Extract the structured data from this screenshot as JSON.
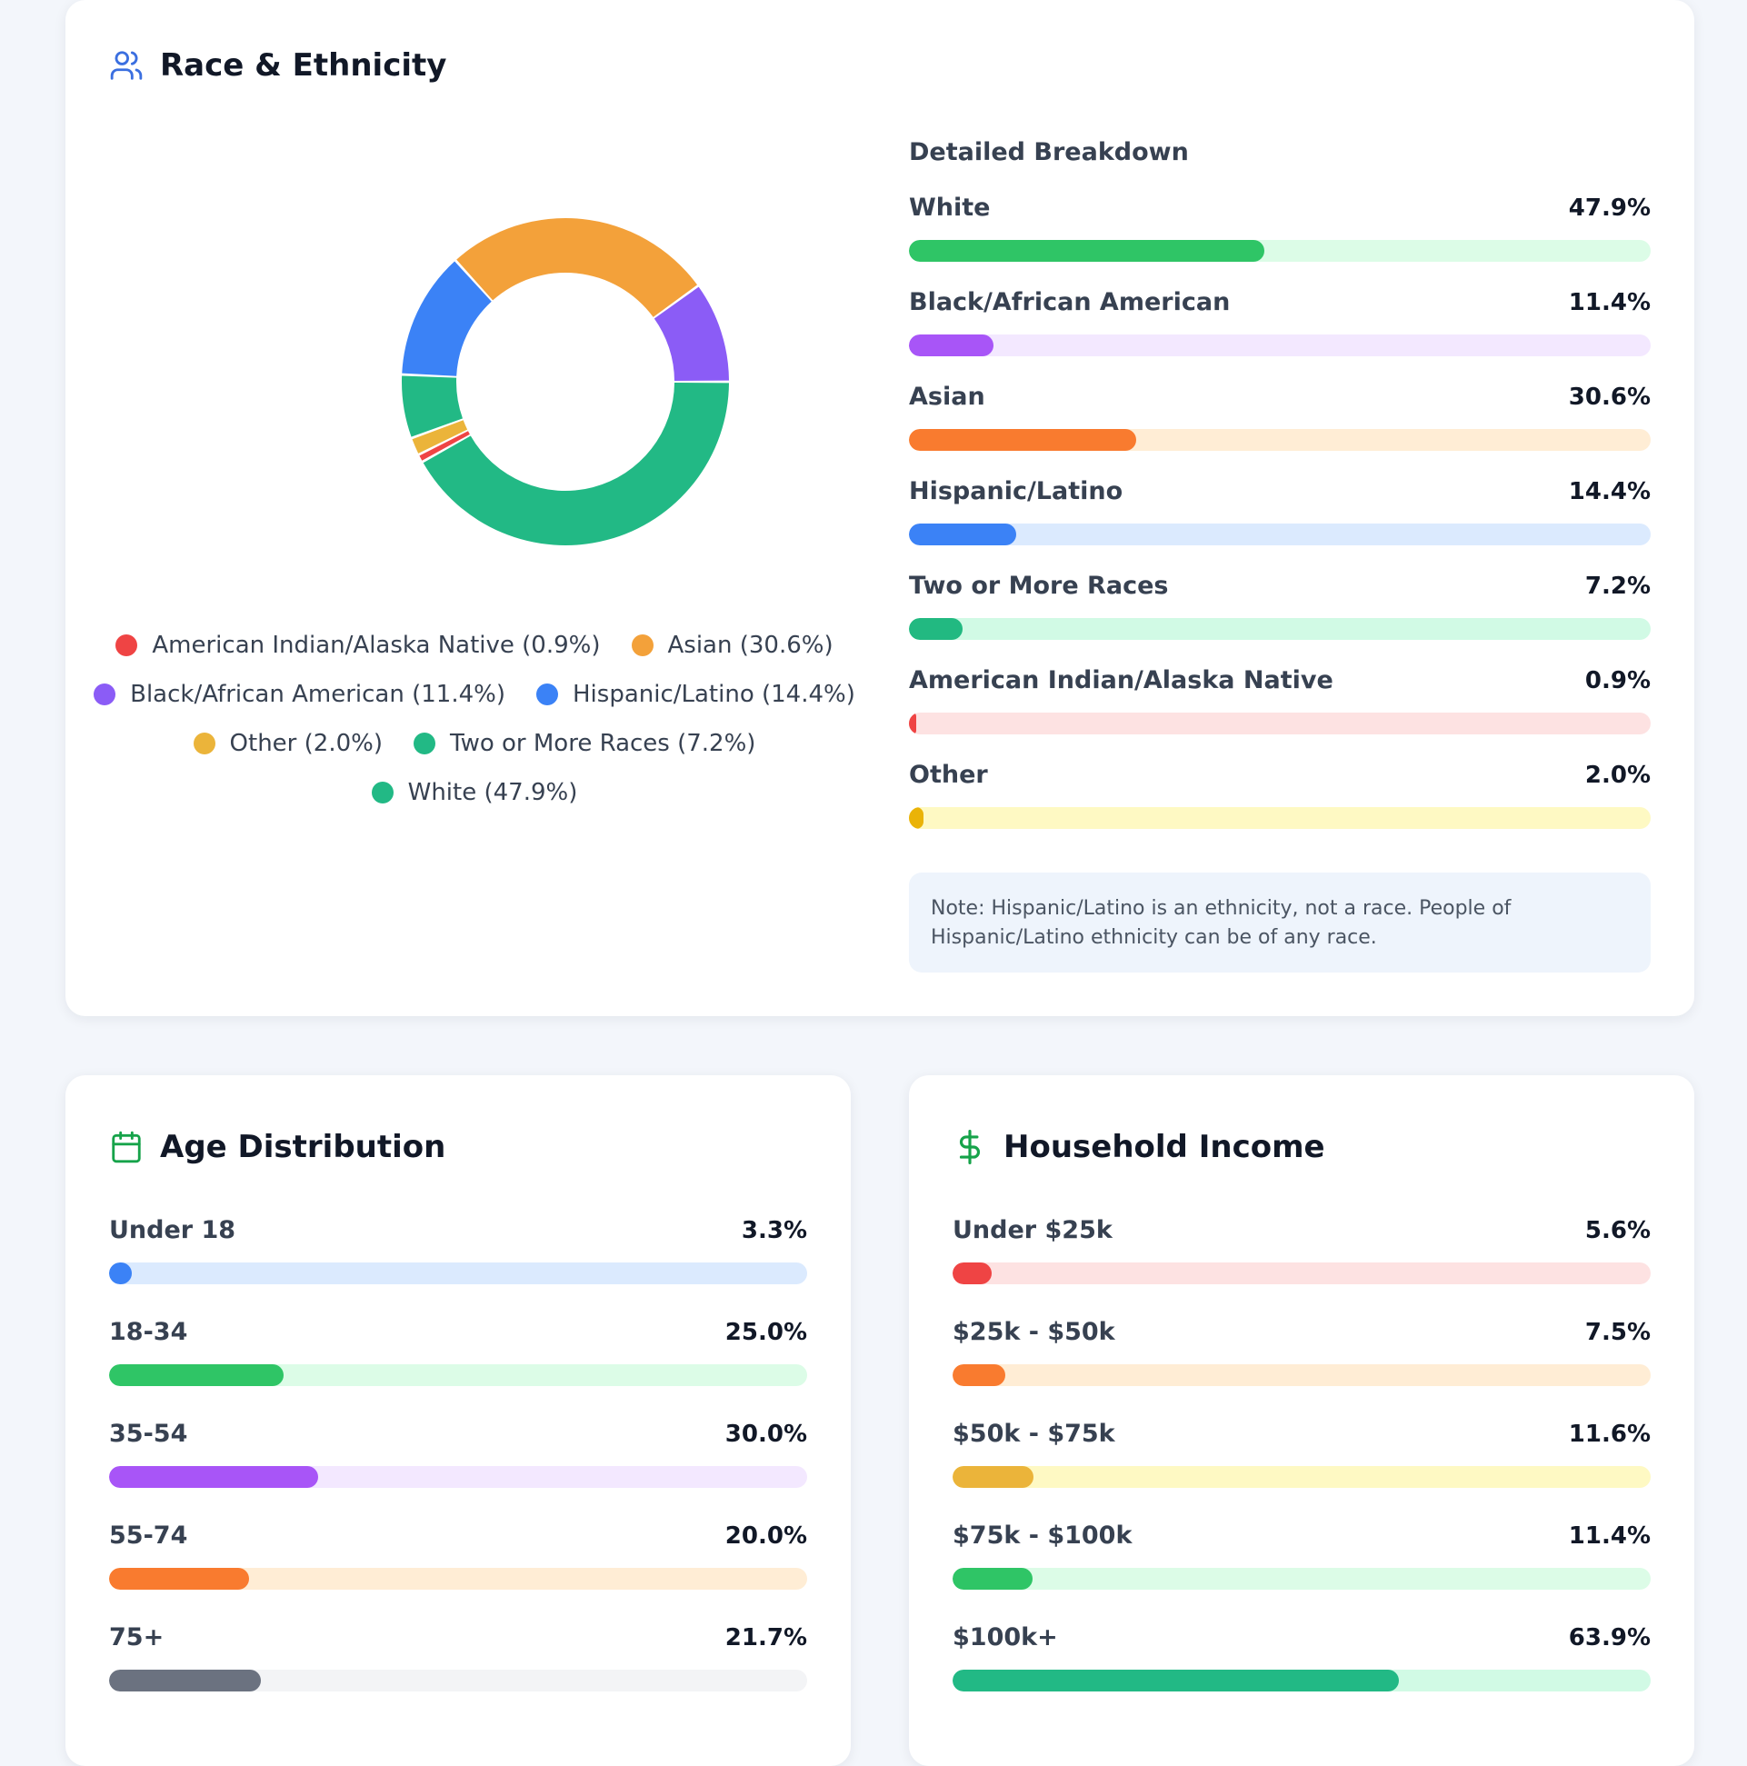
{
  "race_card": {
    "title": "Race & Ethnicity",
    "breakdown_title": "Detailed Breakdown",
    "breakdown": [
      {
        "label": "White",
        "value": "47.9%",
        "pct": 47.9,
        "color": "#2fc566",
        "track": "#dcfce7"
      },
      {
        "label": "Black/African American",
        "value": "11.4%",
        "pct": 11.4,
        "color": "#a855f7",
        "track": "#f3e8ff"
      },
      {
        "label": "Asian",
        "value": "30.6%",
        "pct": 30.6,
        "color": "#f97b2f",
        "track": "#ffedd5"
      },
      {
        "label": "Hispanic/Latino",
        "value": "14.4%",
        "pct": 14.4,
        "color": "#3b82f6",
        "track": "#dbeafe"
      },
      {
        "label": "Two or More Races",
        "value": "7.2%",
        "pct": 7.2,
        "color": "#22b981",
        "track": "#d1fae5"
      },
      {
        "label": "American Indian/Alaska Native",
        "value": "0.9%",
        "pct": 0.9,
        "color": "#ef4444",
        "track": "#fde2e2"
      },
      {
        "label": "Other",
        "value": "2.0%",
        "pct": 2.0,
        "color": "#eab308",
        "track": "#fef9c3"
      }
    ],
    "note": "Note: Hispanic/Latino is an ethnicity, not a race. People of Hispanic/Latino ethnicity can be of any race."
  },
  "chart_data": {
    "type": "pie",
    "title": "Race & Ethnicity",
    "donut": true,
    "categories": [
      "White",
      "American Indian/Alaska Native",
      "Other",
      "Two or More Races",
      "Hispanic/Latino",
      "Asian",
      "Black/African American"
    ],
    "values": [
      47.9,
      0.9,
      2.0,
      7.2,
      14.4,
      30.6,
      11.4
    ],
    "colors": [
      "#22b985",
      "#ef4444",
      "#ebb43a",
      "#22b985",
      "#3b82f6",
      "#f3a13a",
      "#8b5cf6"
    ],
    "legend": [
      {
        "label": "American Indian/Alaska Native (0.9%)",
        "color": "#ef4444"
      },
      {
        "label": "Asian (30.6%)",
        "color": "#f3a13a"
      },
      {
        "label": "Black/African American (11.4%)",
        "color": "#8b5cf6"
      },
      {
        "label": "Hispanic/Latino (14.4%)",
        "color": "#3b82f6"
      },
      {
        "label": "Other (2.0%)",
        "color": "#ebb43a"
      },
      {
        "label": "Two or More Races (7.2%)",
        "color": "#22b985"
      },
      {
        "label": "White (47.9%)",
        "color": "#22b985"
      }
    ]
  },
  "age_card": {
    "title": "Age Distribution",
    "rows": [
      {
        "label": "Under 18",
        "value": "3.3%",
        "pct": 3.3,
        "color": "#3b82f6",
        "track": "#dbeafe"
      },
      {
        "label": "18-34",
        "value": "25.0%",
        "pct": 25.0,
        "color": "#2fc566",
        "track": "#dcfce7"
      },
      {
        "label": "35-54",
        "value": "30.0%",
        "pct": 30.0,
        "color": "#a855f7",
        "track": "#f3e8ff"
      },
      {
        "label": "55-74",
        "value": "20.0%",
        "pct": 20.0,
        "color": "#f97b2f",
        "track": "#ffedd5"
      },
      {
        "label": "75+",
        "value": "21.7%",
        "pct": 21.7,
        "color": "#6b7280",
        "track": "#f3f4f6"
      }
    ]
  },
  "income_card": {
    "title": "Household Income",
    "rows": [
      {
        "label": "Under $25k",
        "value": "5.6%",
        "pct": 5.6,
        "color": "#ef4444",
        "track": "#fde2e2"
      },
      {
        "label": "$25k - $50k",
        "value": "7.5%",
        "pct": 7.5,
        "color": "#f97b2f",
        "track": "#ffedd5"
      },
      {
        "label": "$50k - $75k",
        "value": "11.6%",
        "pct": 11.6,
        "color": "#ebb43a",
        "track": "#fef9c3"
      },
      {
        "label": "$75k - $100k",
        "value": "11.4%",
        "pct": 11.4,
        "color": "#2fc566",
        "track": "#dcfce7"
      },
      {
        "label": "$100k+",
        "value": "63.9%",
        "pct": 63.9,
        "color": "#22b985",
        "track": "#d1fae5"
      }
    ]
  },
  "icons": {
    "race": "users-icon",
    "age": "calendar-icon",
    "income": "dollar-icon",
    "race_color": "#3b6fe0",
    "age_color": "#16a34a",
    "income_color": "#16a34a"
  }
}
